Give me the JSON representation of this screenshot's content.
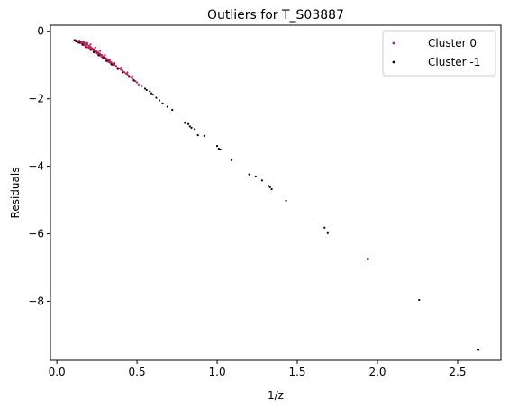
{
  "chart_data": {
    "type": "scatter",
    "title": "Outliers for T_S03887",
    "xlabel": "1/z",
    "ylabel": "Residuals",
    "xlim": [
      -0.04,
      2.77
    ],
    "ylim": [
      -9.75,
      0.18
    ],
    "x_ticks": [
      0.0,
      0.5,
      1.0,
      1.5,
      2.0,
      2.5
    ],
    "x_tick_labels": [
      "0.0",
      "0.5",
      "1.0",
      "1.5",
      "2.0",
      "2.5"
    ],
    "y_ticks": [
      0,
      -2,
      -4,
      -6,
      -8
    ],
    "y_tick_labels": [
      "0",
      "−2",
      "−4",
      "−6",
      "−8"
    ],
    "grid": false,
    "legend_position": "top-right",
    "series": [
      {
        "name": "Cluster 0",
        "color": "#b5164b",
        "points": [
          [
            0.12,
            -0.27
          ],
          [
            0.13,
            -0.29
          ],
          [
            0.14,
            -0.31
          ],
          [
            0.15,
            -0.3
          ],
          [
            0.15,
            -0.35
          ],
          [
            0.16,
            -0.33
          ],
          [
            0.16,
            -0.38
          ],
          [
            0.17,
            -0.36
          ],
          [
            0.17,
            -0.41
          ],
          [
            0.18,
            -0.37
          ],
          [
            0.18,
            -0.44
          ],
          [
            0.19,
            -0.4
          ],
          [
            0.19,
            -0.47
          ],
          [
            0.2,
            -0.43
          ],
          [
            0.2,
            -0.49
          ],
          [
            0.21,
            -0.46
          ],
          [
            0.21,
            -0.52
          ],
          [
            0.22,
            -0.5
          ],
          [
            0.22,
            -0.55
          ],
          [
            0.23,
            -0.53
          ],
          [
            0.23,
            -0.58
          ],
          [
            0.24,
            -0.56
          ],
          [
            0.24,
            -0.61
          ],
          [
            0.25,
            -0.6
          ],
          [
            0.25,
            -0.65
          ],
          [
            0.26,
            -0.63
          ],
          [
            0.26,
            -0.68
          ],
          [
            0.27,
            -0.67
          ],
          [
            0.27,
            -0.72
          ],
          [
            0.28,
            -0.7
          ],
          [
            0.28,
            -0.76
          ],
          [
            0.29,
            -0.74
          ],
          [
            0.29,
            -0.79
          ],
          [
            0.3,
            -0.77
          ],
          [
            0.3,
            -0.82
          ],
          [
            0.31,
            -0.81
          ],
          [
            0.31,
            -0.86
          ],
          [
            0.32,
            -0.85
          ],
          [
            0.32,
            -0.9
          ],
          [
            0.33,
            -0.88
          ],
          [
            0.33,
            -0.93
          ],
          [
            0.34,
            -0.92
          ],
          [
            0.34,
            -0.97
          ],
          [
            0.35,
            -0.96
          ],
          [
            0.35,
            -1.0
          ],
          [
            0.36,
            -0.99
          ],
          [
            0.37,
            -1.03
          ],
          [
            0.38,
            -1.08
          ],
          [
            0.39,
            -1.1
          ],
          [
            0.4,
            -1.14
          ],
          [
            0.41,
            -1.18
          ],
          [
            0.42,
            -1.21
          ],
          [
            0.43,
            -1.25
          ],
          [
            0.44,
            -1.28
          ],
          [
            0.45,
            -1.32
          ],
          [
            0.46,
            -1.36
          ],
          [
            0.47,
            -1.4
          ],
          [
            0.48,
            -1.44
          ],
          [
            0.49,
            -1.48
          ],
          [
            0.5,
            -1.52
          ],
          [
            0.13,
            -0.33
          ],
          [
            0.14,
            -0.28
          ],
          [
            0.17,
            -0.32
          ],
          [
            0.19,
            -0.35
          ],
          [
            0.21,
            -0.39
          ],
          [
            0.24,
            -0.48
          ],
          [
            0.27,
            -0.58
          ],
          [
            0.3,
            -0.7
          ],
          [
            0.33,
            -0.83
          ],
          [
            0.36,
            -0.94
          ],
          [
            0.4,
            -1.08
          ],
          [
            0.44,
            -1.22
          ],
          [
            0.47,
            -1.33
          ],
          [
            0.51,
            -1.58
          ],
          [
            0.53,
            -1.62
          ]
        ]
      },
      {
        "name": "Cluster -1",
        "color": "#000000",
        "points": [
          [
            0.11,
            -0.26
          ],
          [
            0.12,
            -0.3
          ],
          [
            0.14,
            -0.34
          ],
          [
            0.16,
            -0.4
          ],
          [
            0.18,
            -0.47
          ],
          [
            0.21,
            -0.55
          ],
          [
            0.23,
            -0.62
          ],
          [
            0.26,
            -0.71
          ],
          [
            0.29,
            -0.8
          ],
          [
            0.31,
            -0.88
          ],
          [
            0.34,
            -0.98
          ],
          [
            0.38,
            -1.12
          ],
          [
            0.41,
            -1.22
          ],
          [
            0.45,
            -1.35
          ],
          [
            0.48,
            -1.46
          ],
          [
            0.53,
            -1.62
          ],
          [
            0.55,
            -1.7
          ],
          [
            0.56,
            -1.74
          ],
          [
            0.58,
            -1.78
          ],
          [
            0.59,
            -1.84
          ],
          [
            0.6,
            -1.88
          ],
          [
            0.62,
            -1.97
          ],
          [
            0.64,
            -2.05
          ],
          [
            0.66,
            -2.14
          ],
          [
            0.69,
            -2.24
          ],
          [
            0.72,
            -2.33
          ],
          [
            0.8,
            -2.72
          ],
          [
            0.82,
            -2.75
          ],
          [
            0.83,
            -2.82
          ],
          [
            0.84,
            -2.86
          ],
          [
            0.86,
            -2.9
          ],
          [
            0.88,
            -3.08
          ],
          [
            0.92,
            -3.1
          ],
          [
            1.0,
            -3.4
          ],
          [
            1.01,
            -3.48
          ],
          [
            1.02,
            -3.5
          ],
          [
            1.09,
            -3.82
          ],
          [
            1.2,
            -4.24
          ],
          [
            1.24,
            -4.3
          ],
          [
            1.28,
            -4.42
          ],
          [
            1.32,
            -4.58
          ],
          [
            1.33,
            -4.62
          ],
          [
            1.34,
            -4.68
          ],
          [
            1.43,
            -5.02
          ],
          [
            1.67,
            -5.82
          ],
          [
            1.69,
            -5.98
          ],
          [
            1.94,
            -6.76
          ],
          [
            2.26,
            -7.96
          ],
          [
            2.63,
            -9.44
          ]
        ]
      }
    ]
  }
}
